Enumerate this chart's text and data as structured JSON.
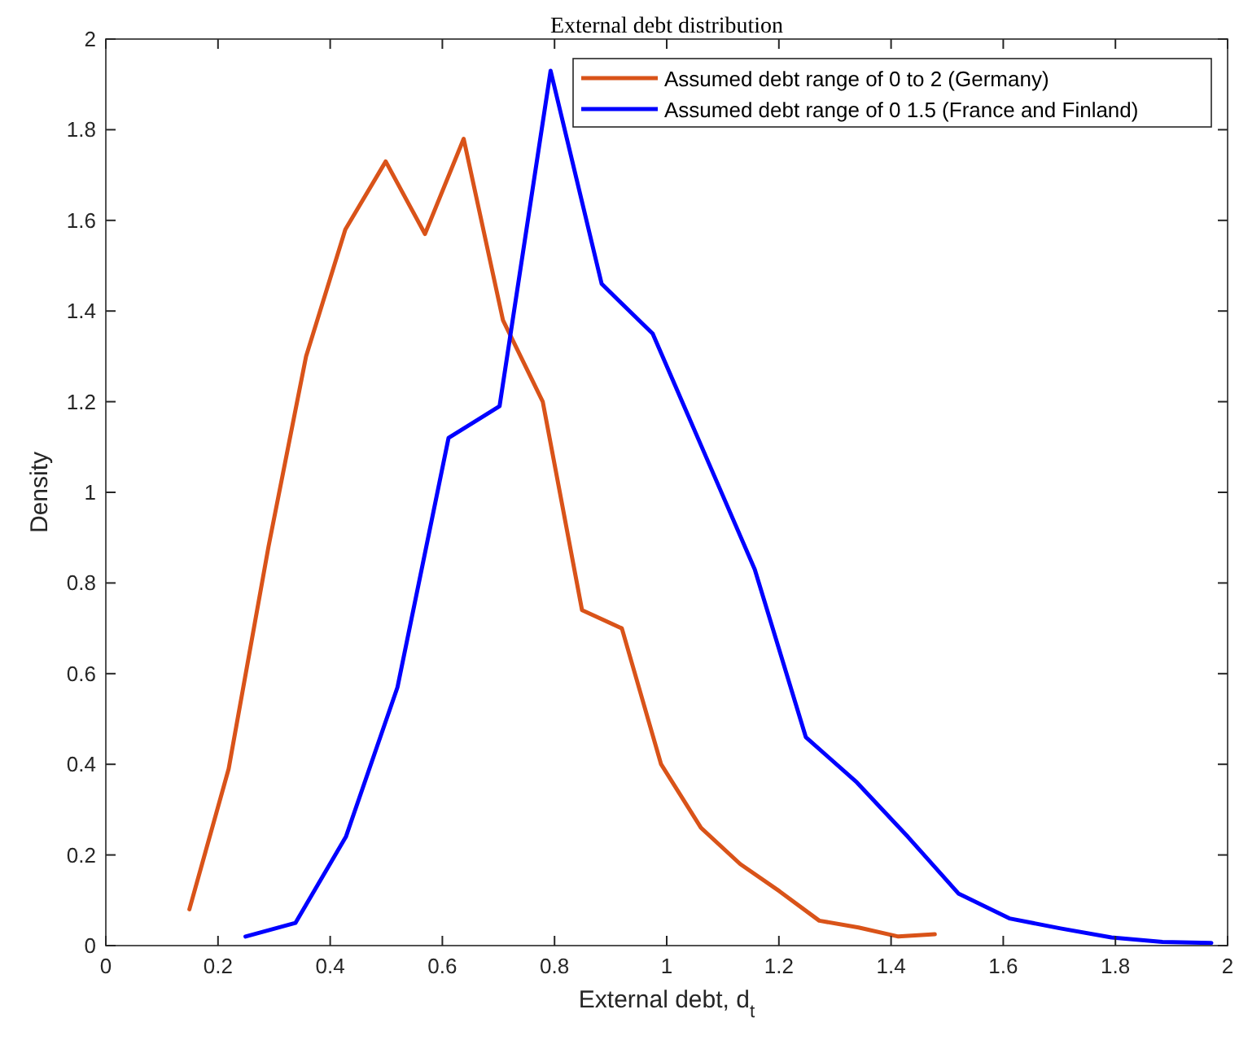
{
  "chart_data": {
    "type": "line",
    "title": "External debt distribution",
    "xlabel": "External debt, d$_{t}$",
    "ylabel": "Density",
    "xlim": [
      0,
      2
    ],
    "xticks": [
      0,
      0.2,
      0.4,
      0.6,
      0.8,
      1,
      1.2,
      1.4,
      1.6,
      1.8,
      2
    ],
    "ylim": [
      0,
      2
    ],
    "yticks": [
      0,
      0.2,
      0.4,
      0.6,
      0.8,
      1,
      1.2,
      1.4,
      1.6,
      1.8,
      2
    ],
    "grid": false,
    "legend": "top right",
    "marker": "none",
    "line_style": "solid",
    "series": [
      {
        "name": "Assumed debt range of 0 to 2 (Germany)",
        "color": "#d95319",
        "x": [
          0.149,
          0.219,
          0.29,
          0.357,
          0.427,
          0.499,
          0.569,
          0.638,
          0.708,
          0.779,
          0.849,
          0.92,
          0.99,
          1.061,
          1.131,
          1.201,
          1.272,
          1.342,
          1.413,
          1.478
        ],
        "values": [
          0.08,
          0.39,
          0.88,
          1.3,
          1.58,
          1.73,
          1.57,
          1.78,
          1.38,
          1.2,
          0.74,
          0.7,
          0.4,
          0.26,
          0.18,
          0.12,
          0.055,
          0.04,
          0.02,
          0.025
        ]
      },
      {
        "name": "Assumed debt range of 0 1.5 (France and Finland)",
        "color": "#0000ff",
        "x": [
          0.249,
          0.338,
          0.428,
          0.52,
          0.611,
          0.702,
          0.793,
          0.884,
          0.975,
          1.066,
          1.157,
          1.248,
          1.339,
          1.43,
          1.52,
          1.611,
          1.702,
          1.793,
          1.884,
          1.971
        ],
        "values": [
          0.02,
          0.05,
          0.24,
          0.57,
          1.12,
          1.19,
          1.93,
          1.46,
          1.35,
          1.09,
          0.83,
          0.46,
          0.36,
          0.24,
          0.115,
          0.06,
          0.038,
          0.018,
          0.008,
          0.006
        ]
      }
    ]
  }
}
